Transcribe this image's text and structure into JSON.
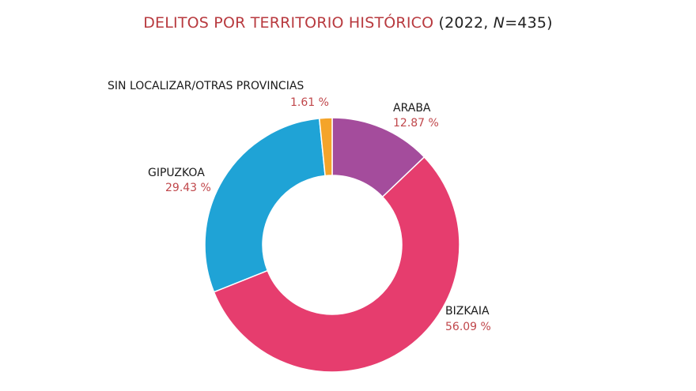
{
  "chart_data": {
    "type": "pie",
    "donut": true,
    "title": "DELITOS POR TERRITORIO HISTÓRICO",
    "subtitle_prefix": "(2022, ",
    "subtitle_n": "N",
    "subtitle_suffix": "=435)",
    "title_color": "#b83a3f",
    "slices": [
      {
        "name": "ARABA",
        "value": 12.87,
        "label": "12.87 %",
        "color": "#a44c9c"
      },
      {
        "name": "BIZKAIA",
        "value": 56.09,
        "label": "56.09 %",
        "color": "#e63d6e"
      },
      {
        "name": "GIPUZKOA",
        "value": 29.43,
        "label": "29.43 %",
        "color": "#1fa3d6"
      },
      {
        "name": "SIN LOCALIZAR/OTRAS PROVINCIAS",
        "value": 1.61,
        "label": "1.61 %",
        "color": "#f4a42a"
      }
    ]
  }
}
